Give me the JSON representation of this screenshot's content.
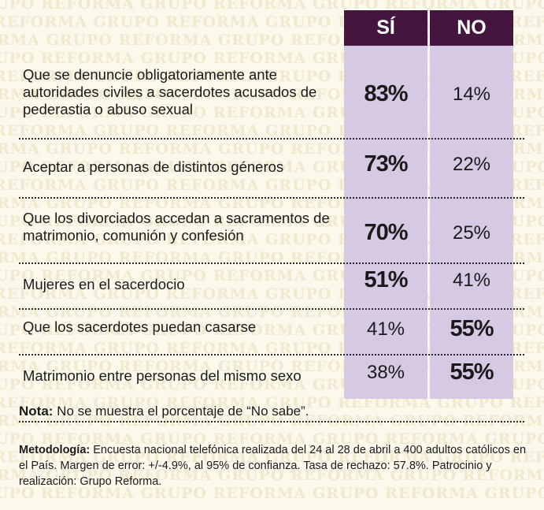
{
  "watermark": "GRUPO REFORMA",
  "chart_data": {
    "type": "table",
    "columns": [
      "SÍ",
      "NO"
    ],
    "rows": [
      {
        "label": "Que se denuncie obligatoriamente ante autoridades civiles a sacerdotes acusados de pederastia o abuso sexual",
        "si": "83%",
        "no": "14%",
        "si_value": 83,
        "no_value": 14,
        "highlight": "si"
      },
      {
        "label": "Aceptar a personas de distintos géneros",
        "si": "73%",
        "no": "22%",
        "si_value": 73,
        "no_value": 22,
        "highlight": "si"
      },
      {
        "label": "Que los divorciados accedan a sacramentos de matrimonio, comunión y confesión",
        "si": "70%",
        "no": "25%",
        "si_value": 70,
        "no_value": 25,
        "highlight": "si"
      },
      {
        "label": "Mujeres en el sacerdocio",
        "si": "51%",
        "no": "41%",
        "si_value": 51,
        "no_value": 41,
        "highlight": "si"
      },
      {
        "label": "Que los sacerdotes puedan casarse",
        "si": "41%",
        "no": "55%",
        "si_value": 41,
        "no_value": 55,
        "highlight": "no"
      },
      {
        "label": "Matrimonio entre personas del mismo sexo",
        "si": "38%",
        "no": "55%",
        "si_value": 38,
        "no_value": 55,
        "highlight": "no"
      }
    ],
    "header_color": "#44163f",
    "column_color": "#d6c9e3"
  },
  "note": {
    "label": "Nota:",
    "text": " No se muestra el porcentaje de “No sabe”."
  },
  "methodology": {
    "label": "Metodología:",
    "text": " Encuesta nacional telefónica realizada del 24 al 28 de abril a 400 adultos católicos en el País. Margen de error: +/-4.9%, al 95% de confianza. Tasa de rechazo: 57.8%. Patrocinio y realización: Grupo Reforma."
  }
}
